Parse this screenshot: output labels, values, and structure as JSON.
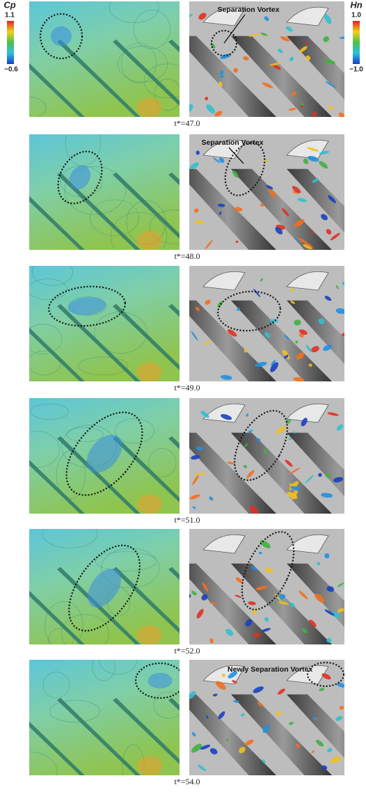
{
  "figure": {
    "colorbars": [
      {
        "label": "Cp",
        "max": "1.1",
        "min": "−0.6"
      },
      {
        "label": "Hn",
        "max": "1.0",
        "min": "−1.0"
      }
    ],
    "panels": [
      {
        "caption": "t*=47.0",
        "annotation": "Separation Vortex"
      },
      {
        "caption": "t*=48.0",
        "annotation": "Separation Vortex"
      },
      {
        "caption": "t*=49.0"
      },
      {
        "caption": "t*=51.0"
      },
      {
        "caption": "t*=52.0"
      },
      {
        "caption": "t*=54.0",
        "annotation": "Newly Separation Vortex"
      }
    ]
  }
}
